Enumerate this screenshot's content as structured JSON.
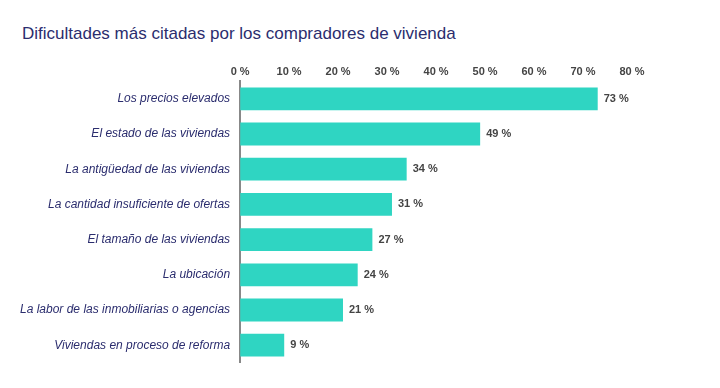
{
  "chart_data": {
    "type": "bar",
    "title": "Dificultades más citadas por los compradores de vivienda",
    "orientation": "horizontal",
    "categories": [
      "Los precios elevados",
      "El estado de las viviendas",
      "La antigüedad de las viviendas",
      "La cantidad insuficiente de ofertas",
      "El tamaño de las viviendas",
      "La ubicación",
      "La labor de las inmobiliarias o agencias",
      "Viviendas en proceso de reforma"
    ],
    "values": [
      73,
      49,
      34,
      31,
      27,
      24,
      21,
      9
    ],
    "value_labels": [
      "73 %",
      "49 %",
      "34 %",
      "31 %",
      "27 %",
      "24 %",
      "21 %",
      "9 %"
    ],
    "color": "#2fd5c2",
    "xlim": [
      0,
      80
    ],
    "xticks": [
      {
        "value": 0,
        "label": "0 %"
      },
      {
        "value": 10,
        "label": "10 %"
      },
      {
        "value": 20,
        "label": "20 %"
      },
      {
        "value": 30,
        "label": "30 %"
      },
      {
        "value": 40,
        "label": "40 %"
      },
      {
        "value": 50,
        "label": "50 %"
      },
      {
        "value": 60,
        "label": "60 %"
      },
      {
        "value": 70,
        "label": "70 %"
      },
      {
        "value": 80,
        "label": "80 %"
      }
    ],
    "grid": false,
    "data_labels": true
  }
}
